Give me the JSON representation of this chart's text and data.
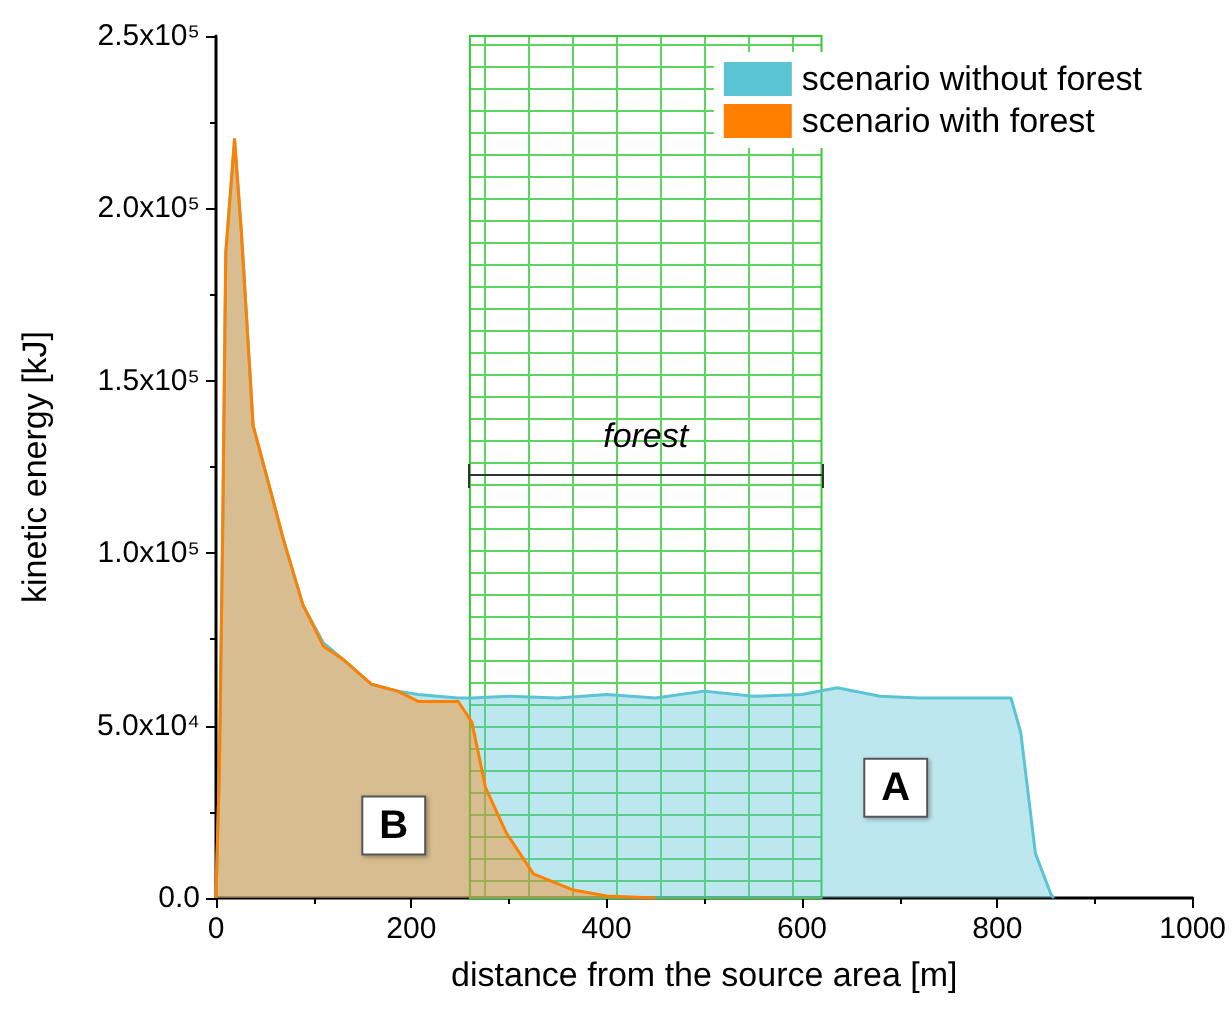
{
  "chart_data": {
    "type": "area",
    "xlabel": "distance from the source area [m]",
    "ylabel": "kinetic energy [kJ]",
    "xlim": [
      0,
      1000
    ],
    "xticks": [
      0,
      200,
      400,
      600,
      800,
      1000
    ],
    "ylim": [
      0,
      250000
    ],
    "yticks": [
      {
        "value": 0,
        "label": "0.0"
      },
      {
        "value": 50000,
        "label": "5.0x10⁴"
      },
      {
        "value": 100000,
        "label": "1.0x10⁵"
      },
      {
        "value": 150000,
        "label": "1.5x10⁵"
      },
      {
        "value": 200000,
        "label": "2.0x10⁵"
      },
      {
        "value": 250000,
        "label": "2.5x10⁵"
      }
    ],
    "grid": false,
    "legend": "top right",
    "bands": [
      {
        "axis": "x",
        "from": 260,
        "to": 620,
        "label": "forest",
        "color": "#33cc33"
      }
    ],
    "annotations": [
      {
        "text": "A",
        "x": 696,
        "y": 32000
      },
      {
        "text": "B",
        "x": 182,
        "y": 21000
      }
    ],
    "series": [
      {
        "name": "scenario without forest",
        "color": "#5bc4d4",
        "x": [
          0,
          3.5,
          7,
          10,
          19,
          26,
          38,
          55,
          69,
          89,
          110,
          131,
          159,
          186,
          207,
          248,
          262,
          300,
          350,
          400,
          450,
          500,
          550,
          600,
          636,
          680,
          720,
          760,
          814,
          824,
          839,
          855,
          858
        ],
        "values": [
          0,
          38000,
          110000,
          187000,
          220000,
          193000,
          137000,
          119000,
          104000,
          85000,
          74000,
          69000,
          62000,
          60000,
          59000,
          58000,
          58000,
          58500,
          58000,
          59000,
          58000,
          60000,
          58500,
          59000,
          61000,
          58500,
          58000,
          58000,
          58000,
          48000,
          13000,
          1000,
          0
        ]
      },
      {
        "name": "scenario with forest",
        "color": "#ff8000",
        "x": [
          0,
          3.5,
          7,
          10,
          19,
          26,
          38,
          55,
          69,
          89,
          110,
          131,
          159,
          186,
          207,
          248,
          262,
          276,
          297,
          325,
          366,
          400,
          450
        ],
        "values": [
          0,
          38000,
          110000,
          187000,
          220000,
          193000,
          137000,
          119000,
          104000,
          85000,
          73000,
          69000,
          62000,
          60000,
          57000,
          57000,
          51000,
          32000,
          19000,
          7000,
          2300,
          600,
          0
        ]
      }
    ]
  }
}
